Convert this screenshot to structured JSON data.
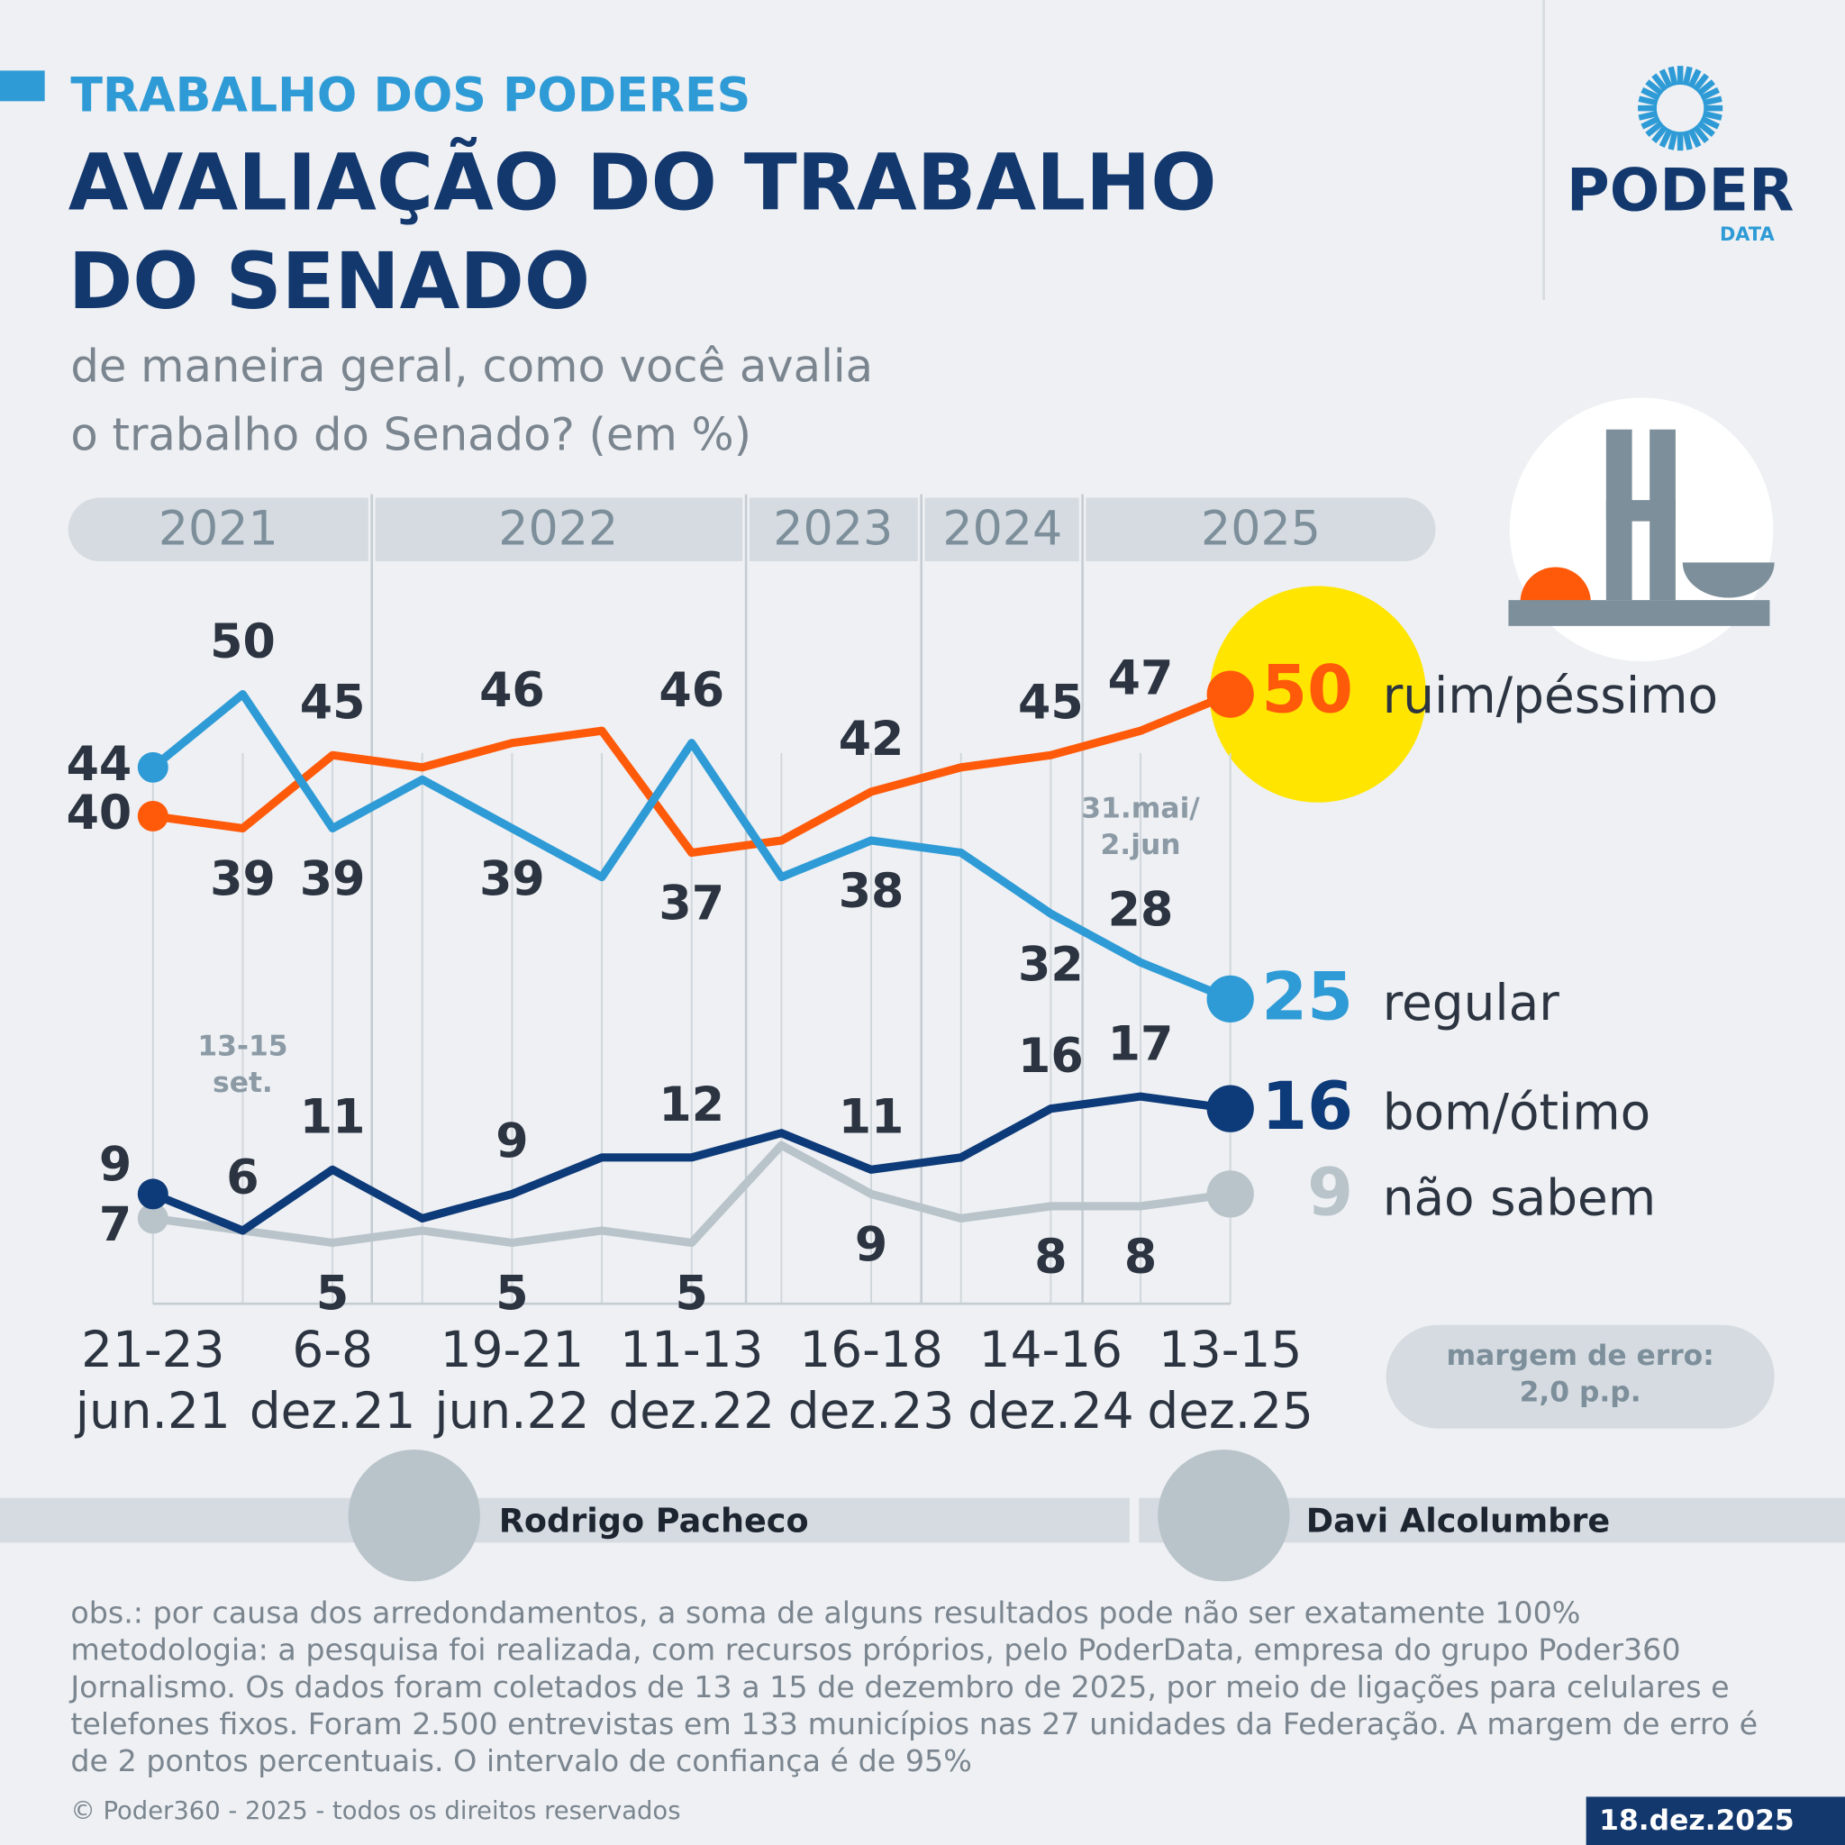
{
  "header": {
    "kicker": "TRABALHO DOS PODERES",
    "title": [
      "AVALIAÇÃO DO TRABALHO",
      "DO SENADO"
    ],
    "subtitle": [
      "de maneira geral, como você avalia",
      "o trabalho do Senado? (em %)"
    ]
  },
  "logo": {
    "name": "PODER",
    "sub": "DATA"
  },
  "chart_data": {
    "type": "line",
    "years": [
      "2021",
      "2022",
      "2023",
      "2024",
      "2025"
    ],
    "categories": [
      "21-23 jun.21",
      null,
      "6-8 dez.21",
      null,
      "19-21 jun.22",
      null,
      "11-13 dez.22",
      null,
      "16-18 dez.23",
      null,
      "14-16 dez.24",
      null,
      "13-15 dez.25"
    ],
    "ylim": [
      0,
      50
    ],
    "series": [
      {
        "name": "ruim/péssimo",
        "color": "#ff5a0a",
        "values": [
          40,
          39,
          45,
          44,
          46,
          47,
          37,
          38,
          42,
          44,
          45,
          47,
          50
        ],
        "value_labels": [
          "40",
          "39",
          "45",
          null,
          "46",
          null,
          "37",
          null,
          "42",
          null,
          "45",
          "47",
          null
        ]
      },
      {
        "name": "regular",
        "color": "#2e9bd6",
        "values": [
          44,
          50,
          39,
          43,
          39,
          35,
          46,
          35,
          38,
          37,
          32,
          28,
          25
        ],
        "value_labels": [
          "44",
          "50",
          "39",
          null,
          "39",
          null,
          "46",
          null,
          "38",
          null,
          "32",
          "28",
          null
        ]
      },
      {
        "name": "bom/ótimo",
        "color": "#0d3a78",
        "values": [
          9,
          6,
          11,
          7,
          9,
          12,
          12,
          14,
          11,
          12,
          16,
          17,
          16
        ],
        "value_labels": [
          "9",
          "6",
          "11",
          null,
          "9",
          null,
          "12",
          null,
          "11",
          null,
          "16",
          "17",
          null
        ]
      },
      {
        "name": "não sabem",
        "color": "#b8c3ca",
        "values": [
          7,
          6,
          5,
          6,
          5,
          6,
          5,
          13,
          9,
          7,
          8,
          8,
          9
        ],
        "value_labels": [
          "7",
          null,
          "5",
          null,
          "5",
          null,
          "5",
          null,
          "9",
          null,
          "8",
          "8",
          null
        ]
      }
    ],
    "annotations": [
      [
        "13-15",
        "set."
      ],
      [
        "31.mai/",
        "2.jun"
      ]
    ],
    "margin_note": [
      "margem de erro:",
      "2,0 p.p."
    ]
  },
  "people": [
    "Rodrigo Pacheco",
    "Davi Alcolumbre"
  ],
  "footer": {
    "obs": [
      "obs.: por causa dos arredondamentos, a soma de alguns resultados pode não ser exatamente 100%",
      "metodologia: a pesquisa foi realizada, com recursos próprios, pelo PoderData, empresa do grupo Poder360",
      "Jornalismo. Os dados foram coletados de 13 a 15 de dezembro de 2025, por meio de ligações para celulares e",
      "telefones fixos. Foram 2.500 entrevistas em 133 municípios nas 27 unidades da Federação. A margem de erro é",
      "de 2 pontos percentuais. O intervalo de confiança é de 95%"
    ],
    "copyright": "© Poder360 - 2025 - todos os direitos reservados",
    "date": "18.dez.2025"
  }
}
